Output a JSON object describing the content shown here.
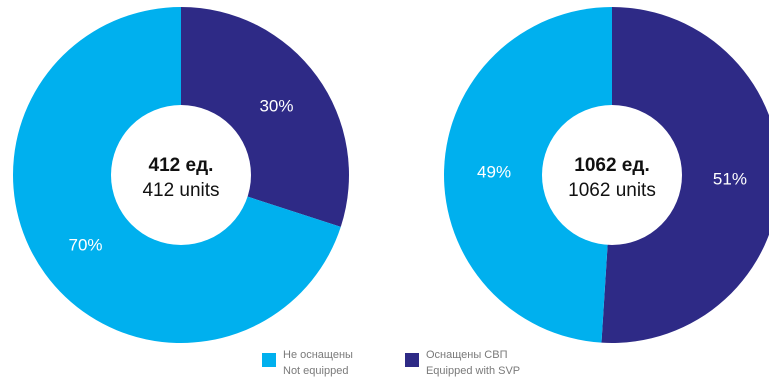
{
  "colors": {
    "not_equipped": "#00b0ee",
    "equipped": "#2e2a86"
  },
  "chart_data": [
    {
      "type": "pie",
      "title": "",
      "center_label": [
        "412 ед.",
        "412 units"
      ],
      "slices": [
        {
          "name": "Оснащены СВП / Equipped with SVP",
          "value": 30,
          "label": "30%",
          "color": "#2e2a86"
        },
        {
          "name": "Не оснащены / Not equipped",
          "value": 70,
          "label": "70%",
          "color": "#00b0ee"
        }
      ]
    },
    {
      "type": "pie",
      "title": "",
      "center_label": [
        "1062 ед.",
        "1062 units"
      ],
      "slices": [
        {
          "name": "Оснащены СВП / Equipped with SVP",
          "value": 51,
          "label": "51%",
          "color": "#2e2a86"
        },
        {
          "name": "Не оснащены / Not equipped",
          "value": 49,
          "label": "49%",
          "color": "#00b0ee"
        }
      ]
    }
  ],
  "legend": [
    {
      "ru": "Не оснащены",
      "en": "Not equipped",
      "color": "#00b0ee"
    },
    {
      "ru": "Оснащены СВП",
      "en": "Equipped with SVP",
      "color": "#2e2a86"
    }
  ]
}
